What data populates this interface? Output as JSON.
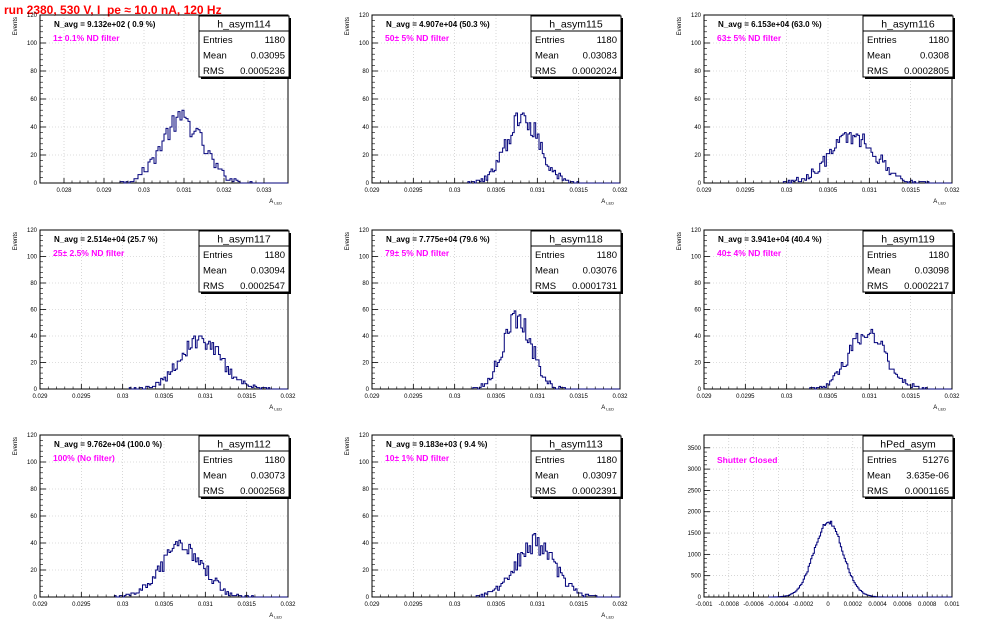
{
  "page_title": "run 2380,   530 V, I_pe ≈ 10.0 nA, 120 Hz",
  "colors": {
    "hist": "#00007a",
    "annotation": "#ff00ff",
    "title": "#ff0000",
    "grid": "#bdbdbd",
    "axis": "#000000"
  },
  "chart_data": [
    {
      "type": "histogram",
      "name": "h_asym114",
      "stats": {
        "entries": "1180",
        "mean": "0.03095",
        "rms": "0.0005236"
      },
      "navg": "N_avg = 9.132e+02 ( 0.9 %)",
      "filter": "1± 0.1% ND filter",
      "xlabel": "A_LED",
      "ylabel": "Events",
      "xlim": [
        0.0274,
        0.0336
      ],
      "ylim": [
        0,
        120
      ],
      "xticks": [
        0.028,
        0.029,
        0.03,
        0.031,
        0.032,
        0.033
      ],
      "xticklabels": [
        "0.028",
        "0.029",
        "0.03",
        "0.031",
        "0.032",
        "0.033"
      ],
      "yticks": [
        0,
        20,
        40,
        60,
        80,
        100,
        120
      ],
      "mean_val": 0.03095,
      "rms_val": 0.0005236,
      "entries_val": 1180,
      "bin_width": 5e-05
    },
    {
      "type": "histogram",
      "name": "h_asym115",
      "stats": {
        "entries": "1180",
        "mean": "0.03083",
        "rms": "0.0002024"
      },
      "navg": "N_avg = 4.907e+04 (50.3 %)",
      "filter": "50± 5% ND filter",
      "xlabel": "A_LED",
      "ylabel": "Events",
      "xlim": [
        0.029,
        0.032
      ],
      "ylim": [
        0,
        120
      ],
      "xticks": [
        0.029,
        0.0295,
        0.03,
        0.0305,
        0.031,
        0.0315,
        0.032
      ],
      "xticklabels": [
        "0.029",
        "0.0295",
        "0.03",
        "0.0305",
        "0.031",
        "0.0315",
        "0.032"
      ],
      "yticks": [
        0,
        20,
        40,
        60,
        80,
        100,
        120
      ],
      "mean_val": 0.03083,
      "rms_val": 0.0002024,
      "entries_val": 1180,
      "bin_width": 2e-05
    },
    {
      "type": "histogram",
      "name": "h_asym116",
      "stats": {
        "entries": "1180",
        "mean": "0.0308",
        "rms": "0.0002805"
      },
      "navg": "N_avg = 6.153e+04 (63.0 %)",
      "filter": "63± 5% ND filter",
      "xlabel": "A_LED",
      "ylabel": "Events",
      "xlim": [
        0.029,
        0.032
      ],
      "ylim": [
        0,
        120
      ],
      "xticks": [
        0.029,
        0.0295,
        0.03,
        0.0305,
        0.031,
        0.0315,
        0.032
      ],
      "xticklabels": [
        "0.029",
        "0.0295",
        "0.03",
        "0.0305",
        "0.031",
        "0.0315",
        "0.032"
      ],
      "yticks": [
        0,
        20,
        40,
        60,
        80,
        100,
        120
      ],
      "mean_val": 0.0308,
      "rms_val": 0.0002805,
      "entries_val": 1180,
      "bin_width": 2e-05
    },
    {
      "type": "histogram",
      "name": "h_asym117",
      "stats": {
        "entries": "1180",
        "mean": "0.03094",
        "rms": "0.0002547"
      },
      "navg": "N_avg = 2.514e+04 (25.7 %)",
      "filter": "25± 2.5% ND filter",
      "xlabel": "A_LED",
      "ylabel": "Events",
      "xlim": [
        0.029,
        0.032
      ],
      "ylim": [
        0,
        120
      ],
      "xticks": [
        0.029,
        0.0295,
        0.03,
        0.0305,
        0.031,
        0.0315,
        0.032
      ],
      "xticklabels": [
        "0.029",
        "0.0295",
        "0.03",
        "0.0305",
        "0.031",
        "0.0315",
        "0.032"
      ],
      "yticks": [
        0,
        20,
        40,
        60,
        80,
        100,
        120
      ],
      "mean_val": 0.03094,
      "rms_val": 0.0002547,
      "entries_val": 1180,
      "bin_width": 2e-05
    },
    {
      "type": "histogram",
      "name": "h_asym118",
      "stats": {
        "entries": "1180",
        "mean": "0.03076",
        "rms": "0.0001731"
      },
      "navg": "N_avg = 7.775e+04 (79.6 %)",
      "filter": "79± 5% ND filter",
      "xlabel": "A_LED",
      "ylabel": "Events",
      "xlim": [
        0.029,
        0.032
      ],
      "ylim": [
        0,
        120
      ],
      "xticks": [
        0.029,
        0.0295,
        0.03,
        0.0305,
        0.031,
        0.0315,
        0.032
      ],
      "xticklabels": [
        "0.029",
        "0.0295",
        "0.03",
        "0.0305",
        "0.031",
        "0.0315",
        "0.032"
      ],
      "yticks": [
        0,
        20,
        40,
        60,
        80,
        100,
        120
      ],
      "mean_val": 0.03076,
      "rms_val": 0.0001731,
      "entries_val": 1180,
      "bin_width": 2e-05
    },
    {
      "type": "histogram",
      "name": "h_asym119",
      "stats": {
        "entries": "1180",
        "mean": "0.03098",
        "rms": "0.0002217"
      },
      "navg": "N_avg = 3.941e+04 (40.4 %)",
      "filter": "40± 4% ND filter",
      "xlabel": "A_LED",
      "ylabel": "Events",
      "xlim": [
        0.029,
        0.032
      ],
      "ylim": [
        0,
        120
      ],
      "xticks": [
        0.029,
        0.0295,
        0.03,
        0.0305,
        0.031,
        0.0315,
        0.032
      ],
      "xticklabels": [
        "0.029",
        "0.0295",
        "0.03",
        "0.0305",
        "0.031",
        "0.0315",
        "0.032"
      ],
      "yticks": [
        0,
        20,
        40,
        60,
        80,
        100,
        120
      ],
      "mean_val": 0.03098,
      "rms_val": 0.0002217,
      "entries_val": 1180,
      "bin_width": 2e-05
    },
    {
      "type": "histogram",
      "name": "h_asym112",
      "stats": {
        "entries": "1180",
        "mean": "0.03073",
        "rms": "0.0002568"
      },
      "navg": "N_avg = 9.762e+04 (100.0 %)",
      "filter": "100% (No filter)",
      "xlabel": "A_LED",
      "ylabel": "Events",
      "xlim": [
        0.029,
        0.032
      ],
      "ylim": [
        0,
        120
      ],
      "xticks": [
        0.029,
        0.0295,
        0.03,
        0.0305,
        0.031,
        0.0315,
        0.032
      ],
      "xticklabels": [
        "0.029",
        "0.0295",
        "0.03",
        "0.0305",
        "0.031",
        "0.0315",
        "0.032"
      ],
      "yticks": [
        0,
        20,
        40,
        60,
        80,
        100,
        120
      ],
      "mean_val": 0.03073,
      "rms_val": 0.0002568,
      "entries_val": 1180,
      "bin_width": 2e-05
    },
    {
      "type": "histogram",
      "name": "h_asym113",
      "stats": {
        "entries": "1180",
        "mean": "0.03097",
        "rms": "0.0002391"
      },
      "navg": "N_avg = 9.183e+03 ( 9.4 %)",
      "filter": "10± 1% ND filter",
      "xlabel": "A_LED",
      "ylabel": "Events",
      "xlim": [
        0.029,
        0.032
      ],
      "ylim": [
        0,
        120
      ],
      "xticks": [
        0.029,
        0.0295,
        0.03,
        0.0305,
        0.031,
        0.0315,
        0.032
      ],
      "xticklabels": [
        "0.029",
        "0.0295",
        "0.03",
        "0.0305",
        "0.031",
        "0.0315",
        "0.032"
      ],
      "yticks": [
        0,
        20,
        40,
        60,
        80,
        100,
        120
      ],
      "mean_val": 0.03097,
      "rms_val": 0.0002391,
      "entries_val": 1180,
      "bin_width": 2e-05
    },
    {
      "type": "histogram",
      "name": "hPed_asym",
      "stats": {
        "entries": "51276",
        "mean": "3.635e-06",
        "rms": "0.0001165"
      },
      "navg": "",
      "filter": "Shutter Closed",
      "xlabel": "",
      "ylabel": "",
      "xlim": [
        -0.001,
        0.001
      ],
      "ylim": [
        0,
        3800
      ],
      "xticks": [
        -0.001,
        -0.0008,
        -0.0006,
        -0.0004,
        -0.0002,
        0,
        0.0002,
        0.0004,
        0.0006,
        0.0008,
        0.001
      ],
      "xticklabels": [
        "-0.001",
        "-0.0008",
        "-0.0006",
        "-0.0004",
        "-0.0002",
        "0",
        "0.0002",
        "0.0004",
        "0.0006",
        "0.0008",
        "0.001"
      ],
      "yticks": [
        0,
        500,
        1000,
        1500,
        2000,
        2500,
        3000,
        3500
      ],
      "mean_val": 3.635e-06,
      "rms_val": 0.0001165,
      "entries_val": 51276,
      "bin_width": 1e-05
    }
  ]
}
